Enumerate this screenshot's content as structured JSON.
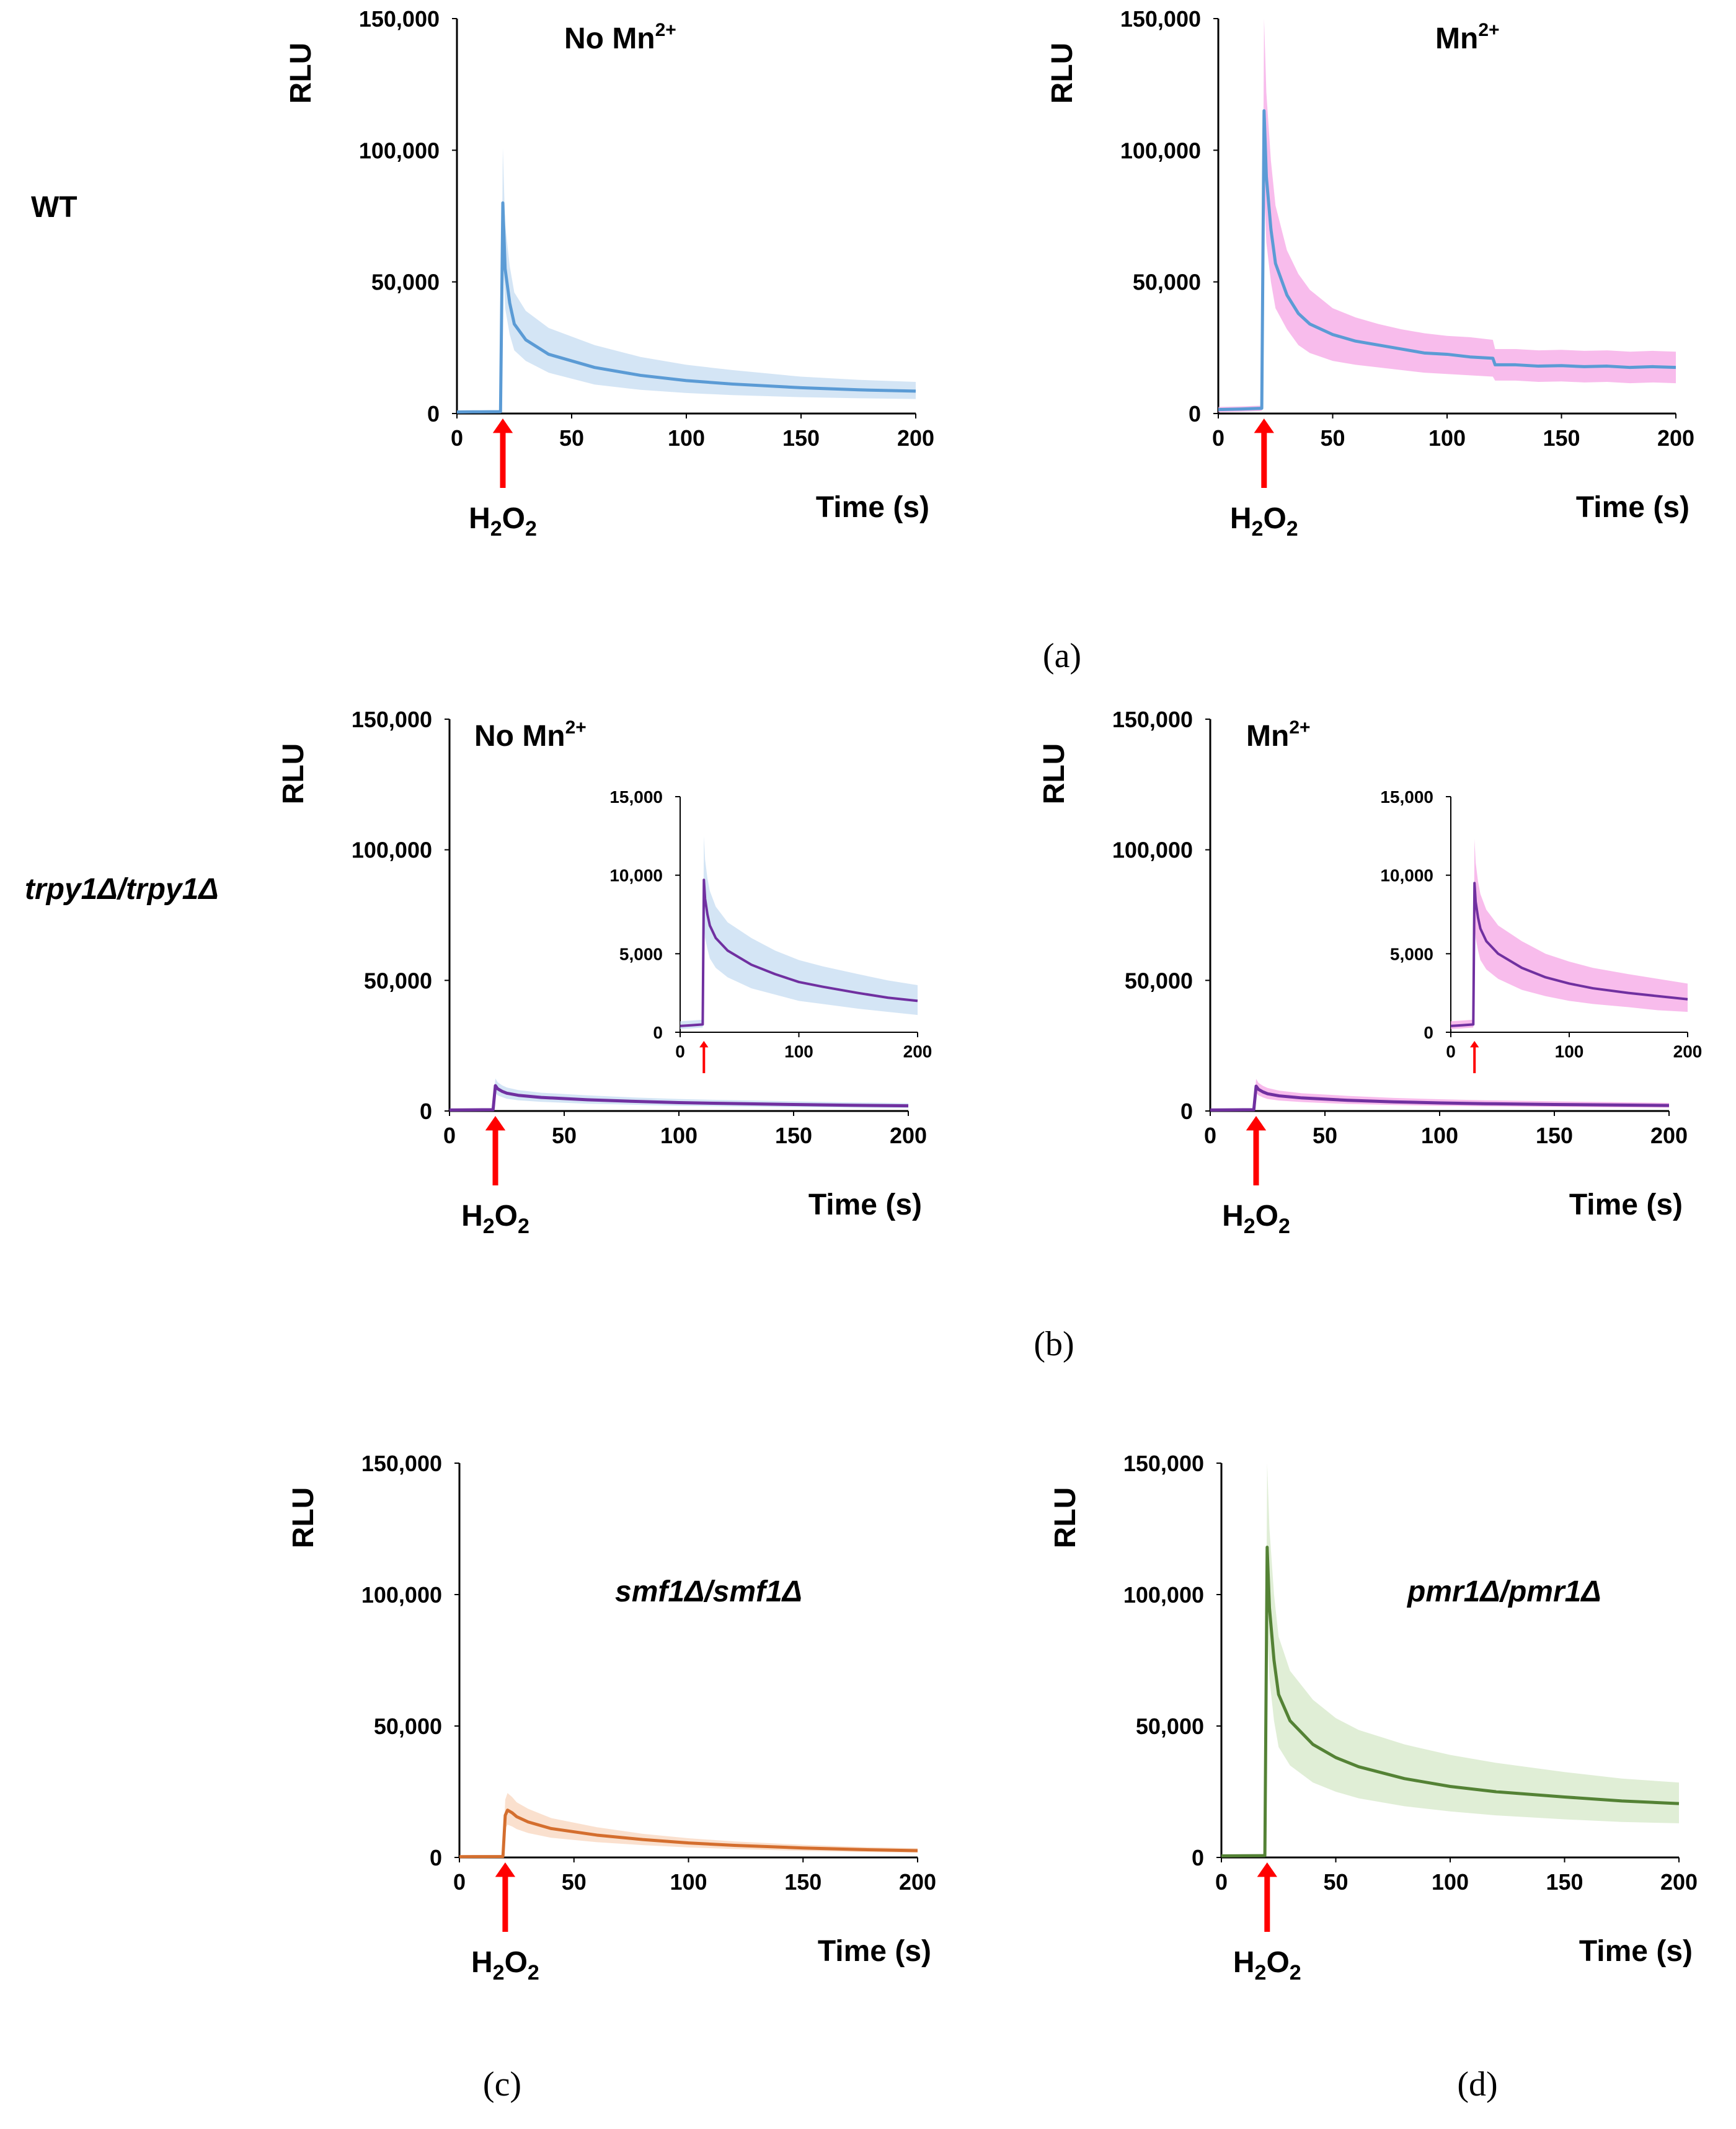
{
  "figure": {
    "row_labels": {
      "wt": "WT",
      "trpy": "trpy1Δ/trpy1Δ"
    },
    "panel_labels": {
      "a": "(a)",
      "b": "(b)",
      "c": "(c)",
      "d": "(d)"
    }
  },
  "chart_data": [
    {
      "id": "a-left",
      "type": "line",
      "title": "No Mn2+",
      "title_base": "No Mn",
      "title_sup": "2+",
      "title_italic": false,
      "ylabel": "RLU",
      "xlabel": "Time (s)",
      "yticks": [
        "0",
        "50,000",
        "100,000",
        "150,000"
      ],
      "xticks": [
        "0",
        "50",
        "100",
        "150",
        "200"
      ],
      "ylim": [
        0,
        150000
      ],
      "xlim": [
        0,
        200
      ],
      "annotation": {
        "x": 20,
        "base": "H",
        "sub1": "2",
        "mid": "O",
        "sub2": "2"
      },
      "series": [
        {
          "name": "WT no Mn2+",
          "color": "#5b9bd5",
          "band_color": "#c6dcf1",
          "x": [
            0,
            10,
            19,
            20,
            21,
            23,
            25,
            30,
            40,
            60,
            80,
            100,
            120,
            150,
            175,
            200
          ],
          "y": [
            600,
            650,
            700,
            80000,
            55000,
            42000,
            34000,
            28000,
            22500,
            17500,
            14500,
            12500,
            11200,
            9800,
            9000,
            8500
          ],
          "upper": [
            900,
            950,
            1000,
            101000,
            72000,
            56000,
            46000,
            39000,
            32500,
            26000,
            21500,
            18500,
            16500,
            14000,
            12800,
            12000
          ],
          "lower": [
            300,
            350,
            400,
            60000,
            40000,
            30000,
            24000,
            20000,
            15500,
            11000,
            9000,
            7800,
            7000,
            6200,
            5800,
            5500
          ]
        }
      ]
    },
    {
      "id": "a-right",
      "type": "line",
      "title": "Mn2+",
      "title_base": "Mn",
      "title_sup": "2+",
      "title_italic": false,
      "ylabel": "RLU",
      "xlabel": "Time (s)",
      "yticks": [
        "0",
        "50,000",
        "100,000",
        "150,000"
      ],
      "xticks": [
        "0",
        "50",
        "100",
        "150",
        "200"
      ],
      "ylim": [
        0,
        150000
      ],
      "xlim": [
        0,
        200
      ],
      "annotation": {
        "x": 20,
        "base": "H",
        "sub1": "2",
        "mid": "O",
        "sub2": "2"
      },
      "series": [
        {
          "name": "WT Mn2+",
          "color": "#5b9bd5",
          "band_color": "#f5a6e6",
          "x": [
            0,
            10,
            19,
            20,
            21,
            23,
            25,
            30,
            35,
            40,
            50,
            60,
            70,
            80,
            90,
            100,
            110,
            120,
            121,
            130,
            140,
            150,
            160,
            170,
            180,
            190,
            200
          ],
          "y": [
            1500,
            1700,
            2000,
            115000,
            90000,
            70000,
            57000,
            45000,
            38000,
            34000,
            30000,
            27500,
            26000,
            24500,
            23000,
            22500,
            21500,
            21000,
            18500,
            18500,
            18000,
            18200,
            17800,
            18000,
            17500,
            17800,
            17500
          ],
          "upper": [
            2500,
            2700,
            3000,
            150000,
            122000,
            96000,
            79000,
            62000,
            53000,
            47000,
            40000,
            36500,
            34000,
            32000,
            30500,
            29500,
            29000,
            28000,
            24500,
            24500,
            24000,
            24200,
            23800,
            24000,
            23500,
            23800,
            23500
          ],
          "lower": [
            500,
            700,
            1000,
            85000,
            65000,
            50000,
            40000,
            32000,
            26000,
            23000,
            20000,
            18500,
            17500,
            16500,
            15500,
            15000,
            14500,
            14000,
            12500,
            12500,
            12000,
            12200,
            11800,
            12000,
            11500,
            11800,
            11500
          ]
        }
      ]
    },
    {
      "id": "b-left",
      "type": "line",
      "title": "No Mn2+",
      "title_base": "No Mn",
      "title_sup": "2+",
      "title_italic": false,
      "ylabel": "RLU",
      "xlabel": "Time (s)",
      "yticks": [
        "0",
        "50,000",
        "100,000",
        "150,000"
      ],
      "xticks": [
        "0",
        "50",
        "100",
        "150",
        "200"
      ],
      "ylim": [
        0,
        150000
      ],
      "xlim": [
        0,
        200
      ],
      "annotation": {
        "x": 20,
        "base": "H",
        "sub1": "2",
        "mid": "O",
        "sub2": "2"
      },
      "series": [
        {
          "name": "trpy1Δ no Mn2+",
          "color": "#7030a0",
          "band_color": "#c6dcf1",
          "x": [
            0,
            10,
            19,
            20,
            21,
            23,
            25,
            30,
            40,
            60,
            80,
            100,
            120,
            150,
            175,
            200
          ],
          "y": [
            400,
            450,
            500,
            9700,
            8500,
            7500,
            6800,
            6000,
            5200,
            4300,
            3700,
            3200,
            2900,
            2500,
            2200,
            2000
          ],
          "upper": [
            700,
            750,
            800,
            12500,
            11000,
            9800,
            9000,
            8000,
            7000,
            6000,
            5200,
            4600,
            4200,
            3700,
            3300,
            3000
          ],
          "lower": [
            200,
            250,
            300,
            7000,
            6000,
            5300,
            4700,
            4100,
            3500,
            2800,
            2400,
            2000,
            1800,
            1500,
            1300,
            1100
          ]
        }
      ],
      "inset": {
        "yticks": [
          "0",
          "5,000",
          "10,000",
          "15,000"
        ],
        "xticks": [
          "0",
          "100",
          "200"
        ],
        "ylim": [
          0,
          15000
        ],
        "xlim": [
          0,
          200
        ]
      }
    },
    {
      "id": "b-right",
      "type": "line",
      "title": "Mn2+",
      "title_base": "Mn",
      "title_sup": "2+",
      "title_italic": false,
      "ylabel": "RLU",
      "xlabel": "Time (s)",
      "yticks": [
        "0",
        "50,000",
        "100,000",
        "150,000"
      ],
      "xticks": [
        "0",
        "50",
        "100",
        "150",
        "200"
      ],
      "ylim": [
        0,
        150000
      ],
      "xlim": [
        0,
        200
      ],
      "annotation": {
        "x": 20,
        "base": "H",
        "sub1": "2",
        "mid": "O",
        "sub2": "2"
      },
      "series": [
        {
          "name": "trpy1Δ Mn2+",
          "color": "#7030a0",
          "band_color": "#f5a6e6",
          "x": [
            0,
            10,
            19,
            20,
            21,
            23,
            25,
            30,
            40,
            60,
            80,
            100,
            120,
            150,
            175,
            200
          ],
          "y": [
            400,
            450,
            500,
            9500,
            8300,
            7300,
            6600,
            5800,
            5000,
            4100,
            3500,
            3100,
            2800,
            2500,
            2300,
            2100
          ],
          "upper": [
            700,
            750,
            800,
            12300,
            10800,
            9600,
            8800,
            7800,
            6800,
            5800,
            5000,
            4500,
            4100,
            3700,
            3400,
            3100
          ],
          "lower": [
            200,
            250,
            300,
            7000,
            6000,
            5200,
            4600,
            4000,
            3400,
            2700,
            2300,
            2000,
            1800,
            1600,
            1400,
            1300
          ]
        }
      ],
      "inset": {
        "yticks": [
          "0",
          "5,000",
          "10,000",
          "15,000"
        ],
        "xticks": [
          "0",
          "100",
          "200"
        ],
        "ylim": [
          0,
          15000
        ],
        "xlim": [
          0,
          200
        ]
      }
    },
    {
      "id": "c",
      "type": "line",
      "title": "smf1Δ/smf1Δ",
      "title_base": "smf1Δ/smf1Δ",
      "title_sup": "",
      "title_italic": true,
      "ylabel": "RLU",
      "xlabel": "Time (s)",
      "yticks": [
        "0",
        "50,000",
        "100,000",
        "150,000"
      ],
      "xticks": [
        "0",
        "50",
        "100",
        "150",
        "200"
      ],
      "ylim": [
        0,
        150000
      ],
      "xlim": [
        0,
        200
      ],
      "annotation": {
        "x": 20,
        "base": "H",
        "sub1": "2",
        "mid": "O",
        "sub2": "2"
      },
      "series": [
        {
          "name": "smf1Δ/smf1Δ",
          "color": "#d46e2e",
          "band_color": "#f8d5bd",
          "x": [
            0,
            10,
            19,
            20,
            21,
            23,
            25,
            30,
            40,
            60,
            80,
            100,
            120,
            150,
            175,
            200
          ],
          "y": [
            300,
            320,
            350,
            16000,
            18000,
            17000,
            15500,
            13500,
            11000,
            8500,
            6800,
            5500,
            4600,
            3600,
            3000,
            2600
          ],
          "upper": [
            500,
            520,
            550,
            22000,
            24500,
            23000,
            21000,
            18500,
            15000,
            11500,
            9000,
            7300,
            6100,
            4800,
            4000,
            3500
          ],
          "lower": [
            150,
            170,
            200,
            11000,
            12500,
            11800,
            10800,
            9300,
            7500,
            5800,
            4700,
            3800,
            3200,
            2500,
            2100,
            1800
          ]
        }
      ]
    },
    {
      "id": "d",
      "type": "line",
      "title": "pmr1Δ/pmr1Δ",
      "title_base": "pmr1Δ/pmr1Δ",
      "title_sup": "",
      "title_italic": true,
      "ylabel": "RLU",
      "xlabel": "Time (s)",
      "yticks": [
        "0",
        "50,000",
        "100,000",
        "150,000"
      ],
      "xticks": [
        "0",
        "50",
        "100",
        "150",
        "200"
      ],
      "ylim": [
        0,
        150000
      ],
      "xlim": [
        0,
        200
      ],
      "annotation": {
        "x": 20,
        "base": "H",
        "sub1": "2",
        "mid": "O",
        "sub2": "2"
      },
      "series": [
        {
          "name": "pmr1Δ/pmr1Δ",
          "color": "#548235",
          "band_color": "#d5e8c8",
          "x": [
            0,
            10,
            19,
            20,
            21,
            23,
            25,
            30,
            40,
            50,
            60,
            80,
            100,
            120,
            150,
            175,
            200
          ],
          "y": [
            600,
            650,
            700,
            118000,
            95000,
            75000,
            62000,
            52000,
            43000,
            38000,
            34500,
            30000,
            27000,
            25000,
            23000,
            21500,
            20500
          ],
          "upper": [
            900,
            950,
            1000,
            150000,
            125000,
            100000,
            84000,
            71000,
            60000,
            53000,
            48500,
            43000,
            39000,
            36000,
            32500,
            30000,
            28500
          ],
          "lower": [
            300,
            350,
            400,
            88000,
            68000,
            52000,
            42000,
            35000,
            28500,
            25000,
            22500,
            19500,
            17500,
            16000,
            14500,
            13500,
            13000
          ]
        }
      ]
    }
  ]
}
